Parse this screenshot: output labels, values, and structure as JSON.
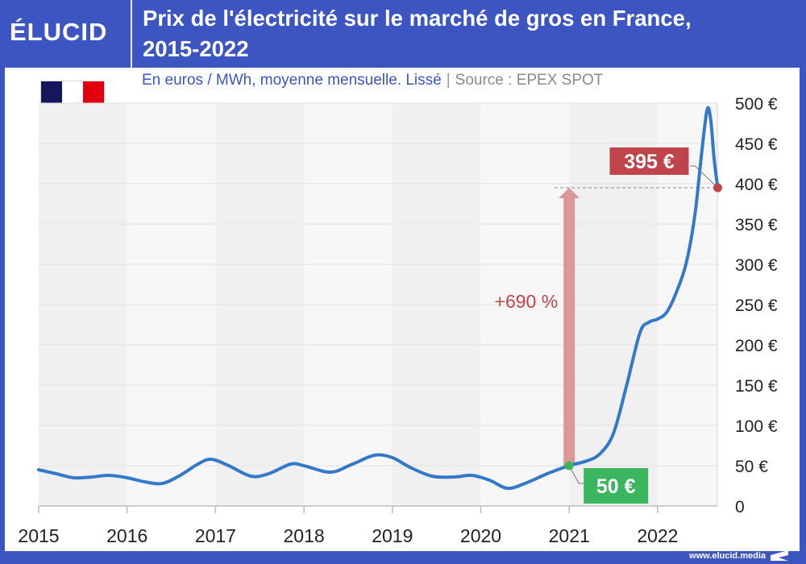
{
  "header": {
    "logo": "ÉLUCID",
    "title_line1": "Prix de l'électricité sur le marché de gros en France,",
    "title_line2": "2015-2022"
  },
  "subtitle": {
    "unit": "En euros / MWh, moyenne mensuelle. Lissé",
    "separator": "|",
    "source": "Source : EPEX SPOT"
  },
  "flag": {
    "colors": [
      "#14185a",
      "#ffffff",
      "#e1000f"
    ]
  },
  "footer": {
    "url": "www.elucid.media"
  },
  "colors": {
    "brand": "#3d55c0",
    "line": "#3479c9",
    "red": "#c0454a",
    "green": "#3bb55e",
    "arrow": "#dc9799"
  },
  "chart_data": {
    "type": "line",
    "title": "Prix de l'électricité sur le marché de gros en France, 2015-2022",
    "subtitle": "En euros / MWh, moyenne mensuelle. Lissé | Source : EPEX SPOT",
    "xlabel": "",
    "ylabel": "€/MWh",
    "xlim": [
      2015,
      2022.68
    ],
    "ylim": [
      0,
      500
    ],
    "grid": true,
    "x_ticks": [
      "2015",
      "2016",
      "2017",
      "2018",
      "2019",
      "2020",
      "2021",
      "2022"
    ],
    "y_ticks": [
      "0",
      "50 €",
      "100 €",
      "150 €",
      "200 €",
      "250 €",
      "300 €",
      "350 €",
      "400 €",
      "450 €",
      "500 €"
    ],
    "y_tick_values": [
      0,
      50,
      100,
      150,
      200,
      250,
      300,
      350,
      400,
      450,
      500
    ],
    "series": [
      {
        "name": "Prix de gros (€/MWh)",
        "x": [
          2015.0,
          2015.2,
          2015.4,
          2015.6,
          2015.8,
          2016.0,
          2016.2,
          2016.4,
          2016.6,
          2016.8,
          2016.95,
          2017.15,
          2017.4,
          2017.6,
          2017.85,
          2018.0,
          2018.3,
          2018.55,
          2018.8,
          2019.0,
          2019.2,
          2019.45,
          2019.7,
          2019.9,
          2020.1,
          2020.3,
          2020.5,
          2020.75,
          2021.0,
          2021.2,
          2021.35,
          2021.5,
          2021.65,
          2021.8,
          2021.9,
          2022.0,
          2022.1,
          2022.2,
          2022.32,
          2022.42,
          2022.5,
          2022.56,
          2022.6,
          2022.64,
          2022.68
        ],
        "values": [
          45,
          40,
          35,
          36,
          38,
          35,
          30,
          28,
          38,
          52,
          58,
          50,
          37,
          40,
          52,
          50,
          42,
          52,
          63,
          60,
          48,
          37,
          36,
          38,
          32,
          22,
          28,
          40,
          50,
          56,
          65,
          90,
          150,
          215,
          228,
          232,
          240,
          262,
          300,
          360,
          440,
          492,
          480,
          430,
          395
        ]
      }
    ],
    "annotations": [
      {
        "label": "50 €",
        "x": 2021.0,
        "y": 50,
        "color": "green"
      },
      {
        "label": "395 €",
        "x": 2022.68,
        "y": 395,
        "color": "red"
      },
      {
        "label": "+690 %",
        "type": "arrow",
        "from": 50,
        "to": 395,
        "x": 2021.0
      }
    ]
  }
}
